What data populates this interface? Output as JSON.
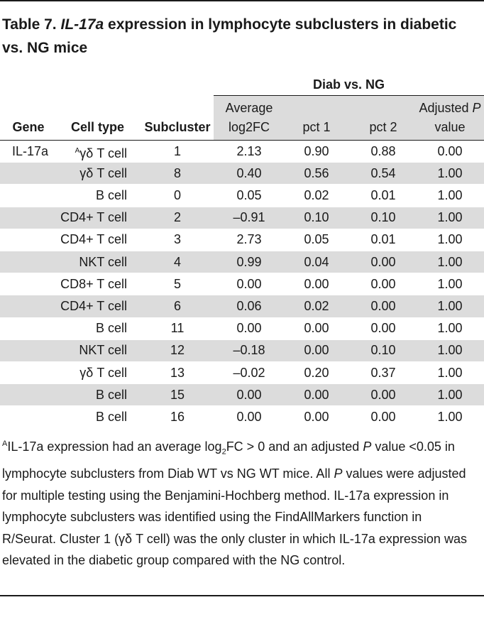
{
  "table": {
    "number": "Table 7.",
    "title_italic": "IL-17a",
    "title_rest": "expression in lymphocyte subclusters in diabetic vs. NG mice",
    "group_header": "Diab vs. NG",
    "columns": {
      "gene": "Gene",
      "cell_type": "Cell type",
      "subcluster": "Subcluster",
      "avg_line1": "Average",
      "avg_line2": "log2FC",
      "pct1": "pct 1",
      "pct2": "pct 2",
      "adj_line1": "Adjusted",
      "adj_p": "P",
      "adj_line2": "value"
    },
    "rows": [
      {
        "gene": "IL-17a",
        "mark": "A",
        "cell": "γδ T cell",
        "sub": "1",
        "avg": "2.13",
        "p1": "0.90",
        "p2": "0.88",
        "adj": "0.00"
      },
      {
        "gene": "",
        "mark": "",
        "cell": "γδ T cell",
        "sub": "8",
        "avg": "0.40",
        "p1": "0.56",
        "p2": "0.54",
        "adj": "1.00"
      },
      {
        "gene": "",
        "mark": "",
        "cell": "B cell",
        "sub": "0",
        "avg": "0.05",
        "p1": "0.02",
        "p2": "0.01",
        "adj": "1.00"
      },
      {
        "gene": "",
        "mark": "",
        "cell": "CD4+ T cell",
        "sub": "2",
        "avg": "–0.91",
        "p1": "0.10",
        "p2": "0.10",
        "adj": "1.00"
      },
      {
        "gene": "",
        "mark": "",
        "cell": "CD4+ T cell",
        "sub": "3",
        "avg": "2.73",
        "p1": "0.05",
        "p2": "0.01",
        "adj": "1.00"
      },
      {
        "gene": "",
        "mark": "",
        "cell": "NKT cell",
        "sub": "4",
        "avg": "0.99",
        "p1": "0.04",
        "p2": "0.00",
        "adj": "1.00"
      },
      {
        "gene": "",
        "mark": "",
        "cell": "CD8+ T cell",
        "sub": "5",
        "avg": "0.00",
        "p1": "0.00",
        "p2": "0.00",
        "adj": "1.00"
      },
      {
        "gene": "",
        "mark": "",
        "cell": "CD4+ T cell",
        "sub": "6",
        "avg": "0.06",
        "p1": "0.02",
        "p2": "0.00",
        "adj": "1.00"
      },
      {
        "gene": "",
        "mark": "",
        "cell": "B cell",
        "sub": "11",
        "avg": "0.00",
        "p1": "0.00",
        "p2": "0.00",
        "adj": "1.00"
      },
      {
        "gene": "",
        "mark": "",
        "cell": "NKT cell",
        "sub": "12",
        "avg": "–0.18",
        "p1": "0.00",
        "p2": "0.10",
        "adj": "1.00"
      },
      {
        "gene": "",
        "mark": "",
        "cell": "γδ T cell",
        "sub": "13",
        "avg": "–0.02",
        "p1": "0.20",
        "p2": "0.37",
        "adj": "1.00"
      },
      {
        "gene": "",
        "mark": "",
        "cell": "B cell",
        "sub": "15",
        "avg": "0.00",
        "p1": "0.00",
        "p2": "0.00",
        "adj": "1.00"
      },
      {
        "gene": "",
        "mark": "",
        "cell": "B cell",
        "sub": "16",
        "avg": "0.00",
        "p1": "0.00",
        "p2": "0.00",
        "adj": "1.00"
      }
    ],
    "footnote": {
      "mark": "A",
      "t1": "IL-17a expression had an average log",
      "sub": "2",
      "t2": "FC > 0 and an adjusted ",
      "p1": "P",
      "t3": " value <0.05 in lymphocyte subclusters from Diab WT vs NG WT mice. All ",
      "p2": "P",
      "t4": " values were adjusted for multiple testing using the Benjamini-Hochberg method. IL-17a expression in lymphocyte subclusters was identified using the FindAllMarkers function in R/Seurat. Cluster 1 (γδ T cell) was the only cluster in which IL-17a expression was elevated in the diabetic group compared with the NG control."
    }
  }
}
